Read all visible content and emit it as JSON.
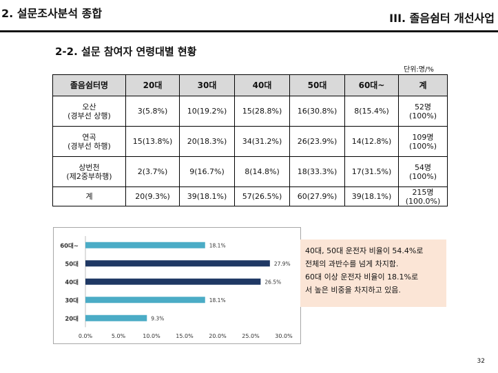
{
  "header": {
    "left_title": "2. 설문조사분석 종합",
    "right_title": "III. 졸음쉼터 개선사업"
  },
  "subtitle": "2-2. 설문 참여자 연령대별 현황",
  "unit_label": "단위:명/%",
  "table": {
    "headers": [
      "졸음쉼터명",
      "20대",
      "30대",
      "40대",
      "50대",
      "60대~",
      "계"
    ],
    "rows": [
      {
        "name_line1": "오산",
        "name_line2": "(경부선 상행)",
        "cells": [
          "3(5.8%)",
          "10(19.2%)",
          "15(28.8%)",
          "16(30.8%)",
          "8(15.4%)"
        ],
        "total_line1": "52명",
        "total_line2": "(100%)"
      },
      {
        "name_line1": "연곡",
        "name_line2": "(경부선 하행)",
        "cells": [
          "15(13.8%)",
          "20(18.3%)",
          "34(31.2%)",
          "26(23.9%)",
          "14(12.8%)"
        ],
        "total_line1": "109명",
        "total_line2": "(100%)"
      },
      {
        "name_line1": "상번천",
        "name_line2": "(제2중부하행)",
        "cells": [
          "2(3.7%)",
          "9(16.7%)",
          "8(14.8%)",
          "18(33.3%)",
          "17(31.5%)"
        ],
        "total_line1": "54명",
        "total_line2": "(100%)"
      },
      {
        "name_line1": "계",
        "name_line2": "",
        "cells": [
          "20(9.3%)",
          "39(18.1%)",
          "57(26.5%)",
          "60(27.9%)",
          "39(18.1%)"
        ],
        "total_line1": "215명",
        "total_line2": "(100.0%)"
      }
    ]
  },
  "chart_data": {
    "type": "bar",
    "orientation": "horizontal",
    "categories": [
      "60대~",
      "50대",
      "40대",
      "30대",
      "20대"
    ],
    "values": [
      18.1,
      27.9,
      26.5,
      18.1,
      9.3
    ],
    "value_labels": [
      "18.1%",
      "27.9%",
      "26.5%",
      "18.1%",
      "9.3%"
    ],
    "bar_colors": [
      "#4bacc6",
      "#1f3864",
      "#1f3864",
      "#4bacc6",
      "#4bacc6"
    ],
    "x_ticks": [
      "0.0%",
      "5.0%",
      "10.0%",
      "15.0%",
      "20.0%",
      "25.0%",
      "30.0%"
    ],
    "xlim": [
      0,
      30
    ],
    "grid": false,
    "title": "",
    "xlabel": "",
    "ylabel": ""
  },
  "note_lines": [
    "40대, 50대 운전자 비율이 54.4%로",
    "전체의 과반수를 넘게 차지함.",
    "60대 이상 운전자 비율이 18.1%로",
    "서 높은 비중을 차지하고 있음."
  ],
  "page_number": "32"
}
